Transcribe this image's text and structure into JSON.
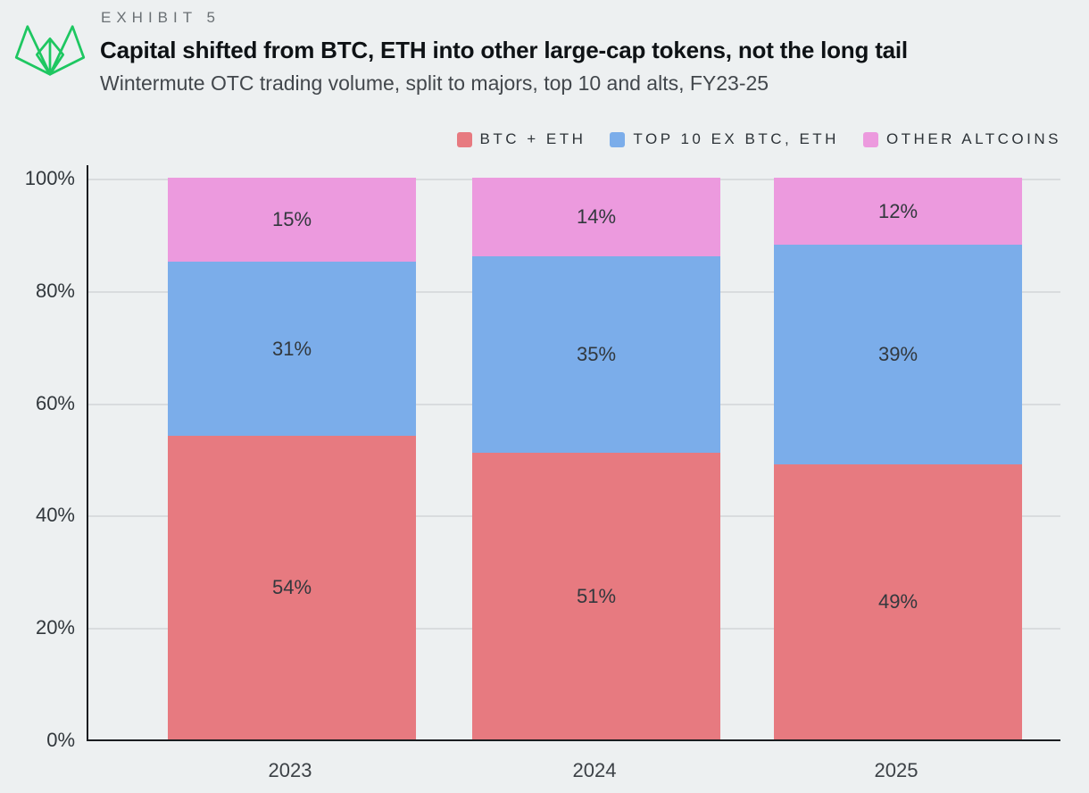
{
  "page": {
    "background": "#edf0f1"
  },
  "header": {
    "exhibit_label": "EXHIBIT 5",
    "title": "Capital shifted from BTC, ETH into other large-cap tokens, not the long tail",
    "subtitle": "Wintermute OTC trading volume, split to majors, top 10 and alts, FY23-25",
    "logo_color": "#1ec761"
  },
  "chart_data": {
    "type": "bar",
    "stacked": true,
    "stack_unit": "percent",
    "title": "Capital shifted from BTC, ETH into other large-cap tokens, not the long tail",
    "subtitle": "Wintermute OTC trading volume, split to majors, top 10 and alts, FY23-25",
    "categories": [
      "2023",
      "2024",
      "2025"
    ],
    "series": [
      {
        "name": "BTC + ETH",
        "color": "#e77a80",
        "values": [
          54,
          51,
          49
        ]
      },
      {
        "name": "TOP 10 EX BTC, ETH",
        "color": "#7badea",
        "values": [
          31,
          35,
          39
        ]
      },
      {
        "name": "OTHER ALTCOINS",
        "color": "#ec9ade",
        "values": [
          15,
          14,
          12
        ]
      }
    ],
    "value_suffix": "%",
    "xlabel": "",
    "ylabel": "",
    "ylim": [
      0,
      100
    ],
    "yticks": [
      "100%",
      "80%",
      "60%",
      "40%",
      "20%",
      "0%"
    ],
    "grid": true,
    "legend_position": "top-right",
    "axis_color": "#1a1d20",
    "gridline_color": "#d9dcde"
  }
}
